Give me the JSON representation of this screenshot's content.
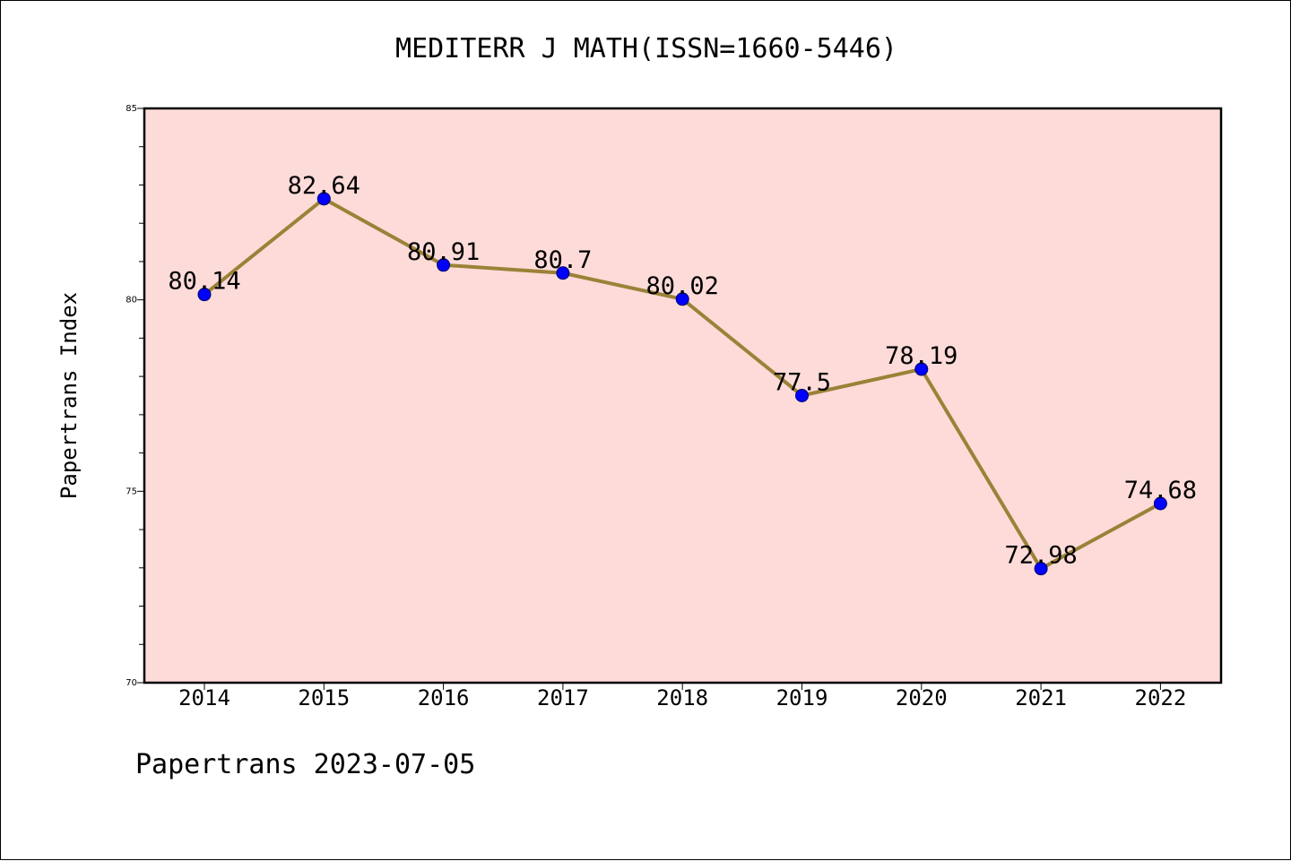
{
  "title": "MEDITERR J MATH(ISSN=1660-5446)",
  "footer": "Papertrans 2023-07-05",
  "colors": {
    "plot_background": "#fddbd9",
    "line": "#9a8237",
    "marker": "#0000ff"
  },
  "chart_data": {
    "type": "line",
    "title": "MEDITERR J MATH(ISSN=1660-5446)",
    "xlabel": "",
    "ylabel": "Papertrans Index",
    "categories": [
      "2014",
      "2015",
      "2016",
      "2017",
      "2018",
      "2019",
      "2020",
      "2021",
      "2022"
    ],
    "series": [
      {
        "values": [
          80.14,
          82.64,
          80.91,
          80.7,
          80.02,
          77.5,
          78.19,
          72.98,
          74.68
        ],
        "labels": [
          "80.14",
          "82.64",
          "80.91",
          "80.7",
          "80.02",
          "77.5",
          "78.19",
          "72.98",
          "74.68"
        ]
      }
    ],
    "ylim": [
      70,
      85
    ],
    "yticks": [
      70,
      75,
      80,
      85
    ],
    "grid": false,
    "legend": "none"
  }
}
